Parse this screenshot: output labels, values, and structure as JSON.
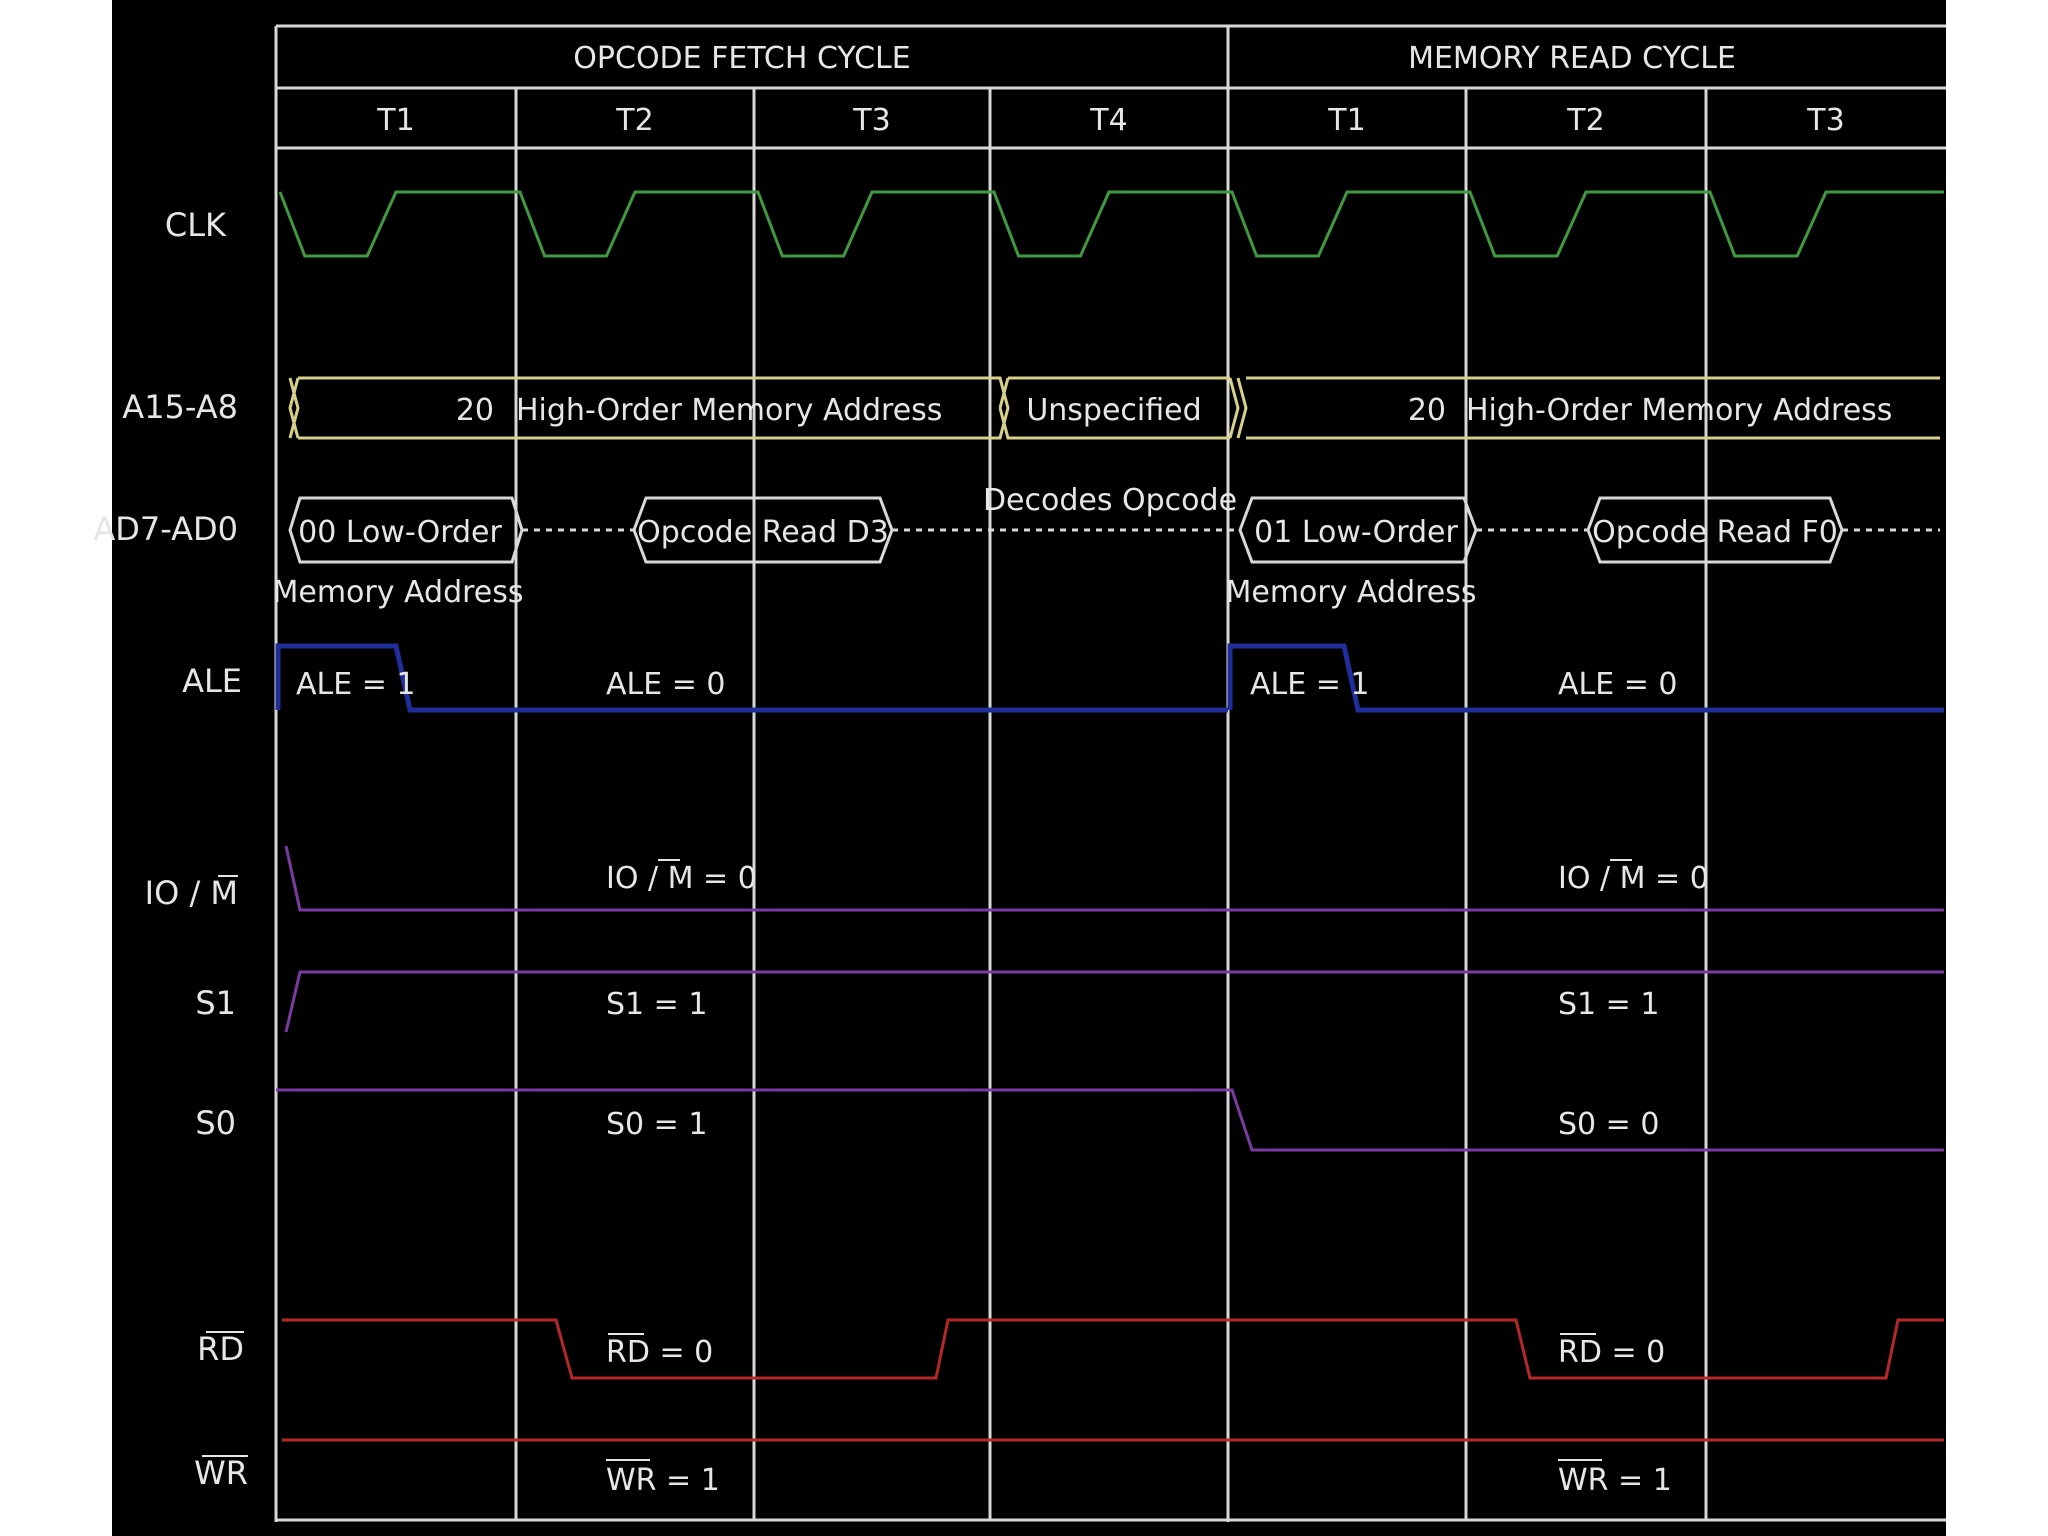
{
  "diagram": {
    "cycle_headers": [
      "OPCODE FETCH CYCLE",
      "MEMORY READ CYCLE"
    ],
    "states": [
      "T1",
      "T2",
      "T3",
      "T4",
      "T1",
      "T2",
      "T3"
    ],
    "signals": [
      "CLK",
      "A15-A8",
      "AD7-AD0",
      "ALE",
      "IO / M",
      "S1",
      "S0",
      "RD",
      "WR"
    ],
    "address_bus": {
      "fetch_value": "20",
      "fetch_label": "High-Order Memory Address",
      "t4_label": "Unspecified",
      "read_value": "20",
      "read_label": "High-Order Memory Address"
    },
    "data_bus": {
      "fetch_low": "00 Low-Order",
      "fetch_low_line2": "Memory Address",
      "fetch_opcode": "Opcode Read D3",
      "t4_label": "Decodes Opcode",
      "read_low": "01  Low-Order",
      "read_low_line2": "Memory Address",
      "read_opcode": "Opcode Read F0"
    },
    "annotations": {
      "ale_fetch_t1": "ALE = 1",
      "ale_fetch_t2": "ALE = 0",
      "ale_read_t1": "ALE = 1",
      "ale_read_t2": "ALE = 0",
      "iom_fetch": "IO / M = 0",
      "iom_read": "IO / M = 0",
      "s1_fetch": "S1 = 1",
      "s1_read": "S1 = 1",
      "s0_fetch": "S0 = 1",
      "s0_read": "S0 = 0",
      "rd_fetch": "RD = 0",
      "rd_read": "RD = 0",
      "wr_fetch": "WR = 1",
      "wr_read": "WR = 1"
    },
    "colors": {
      "background": "#000000",
      "grid": "#d8d8d8",
      "text": "#e6e6e6",
      "clk": "#3f9a3f",
      "bus": "#d8d08a",
      "ale": "#1f2e9a",
      "status": "#7a3aa0",
      "rdwr": "#b42828"
    }
  }
}
